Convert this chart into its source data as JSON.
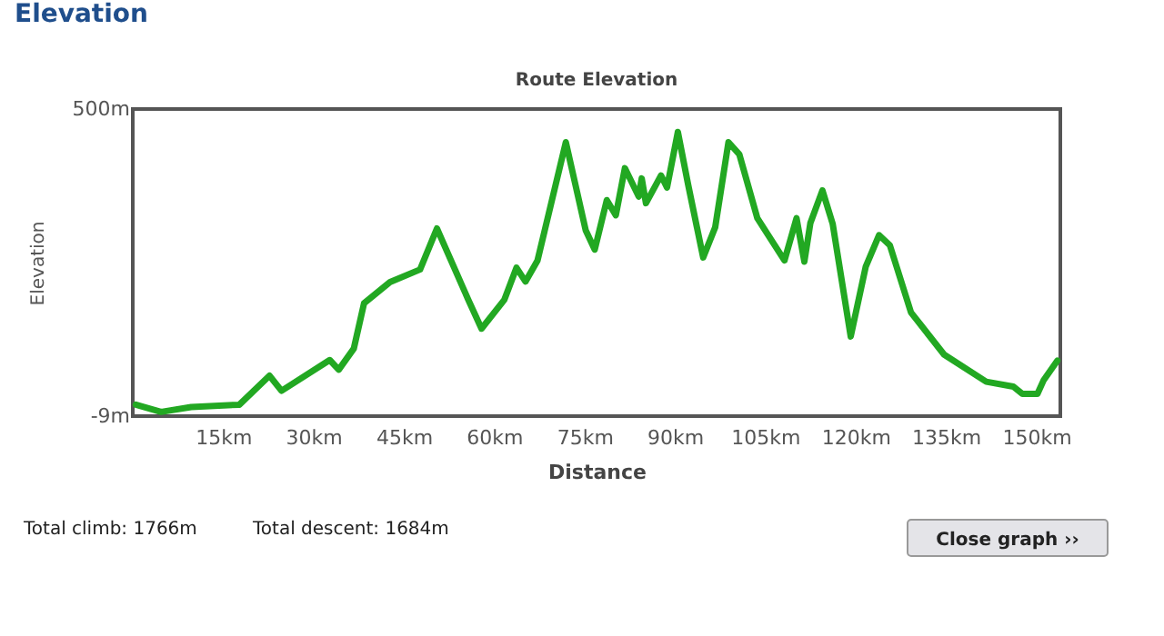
{
  "chart_data": {
    "type": "line",
    "title": "Route Elevation",
    "xlabel": "Distance",
    "ylabel": "Elevation",
    "annotations": [
      "Elevation",
      "Total climb: 1766m",
      "Total descent: 1684m",
      "Close graph ››"
    ],
    "x": [
      0.5,
      4.7,
      9.7,
      17.7,
      22.7,
      24.7,
      32.7,
      34.2,
      36.7,
      38.4,
      42.7,
      47.7,
      50.5,
      55.7,
      57.9,
      61.7,
      63.7,
      65.2,
      67.2,
      71.9,
      75.2,
      76.7,
      78.7,
      80.2,
      81.7,
      84,
      84.5,
      85.2,
      87.7,
      88.7,
      90.5,
      92.2,
      94.7,
      96.7,
      98.9,
      100.7,
      103.7,
      108.2,
      110.2,
      111.5,
      112.5,
      114.5,
      116.2,
      119.2,
      121.7,
      123.9,
      125.7,
      129.2,
      134.7,
      141.7,
      146.2,
      147.7,
      150.2,
      151.2,
      153.5
    ],
    "series": [
      {
        "color": "#22a822",
        "values": [
          10,
          -2,
          6,
          10,
          58,
          33,
          84,
          68,
          103,
          178,
          213,
          234,
          302,
          184,
          136,
          184,
          237,
          214,
          249,
          445,
          299,
          267,
          349,
          324,
          402,
          355,
          385,
          344,
          390,
          370,
          462,
          375,
          254,
          304,
          445,
          425,
          319,
          249,
          319,
          247,
          311,
          365,
          310,
          123,
          239,
          291,
          274,
          163,
          93,
          48,
          40,
          28,
          28,
          50,
          83
        ]
      }
    ],
    "xlim": [
      0,
      154
    ],
    "ylim": [
      -9,
      500
    ],
    "xticks": [
      {
        "value": 15,
        "label": "15km"
      },
      {
        "value": 30,
        "label": "30km"
      },
      {
        "value": 45,
        "label": "45km"
      },
      {
        "value": 60,
        "label": "60km"
      },
      {
        "value": 75,
        "label": "75km"
      },
      {
        "value": 90,
        "label": "90km"
      },
      {
        "value": 105,
        "label": "105km"
      },
      {
        "value": 120,
        "label": "120km"
      },
      {
        "value": 135,
        "label": "135km"
      },
      {
        "value": 150,
        "label": "150km"
      }
    ],
    "yticks": [
      {
        "value": -9,
        "label": "-9m"
      },
      {
        "value": 500,
        "label": "500m"
      }
    ],
    "grid": false,
    "marker": "none",
    "line_style": "solid"
  }
}
